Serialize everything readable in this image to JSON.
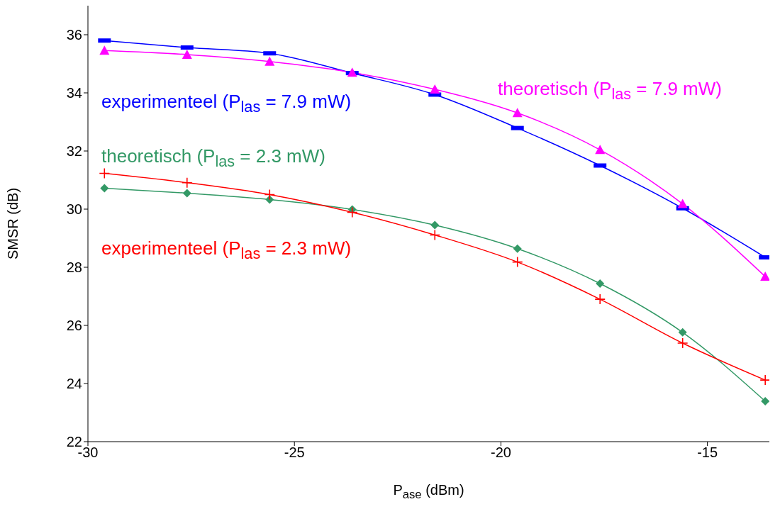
{
  "chart_data": {
    "type": "line",
    "xlabel": "P$_{ase}$ (dBm)",
    "ylabel": "SMSR (dB)",
    "x": [
      -29.6,
      -27.6,
      -25.6,
      -23.6,
      -21.6,
      -19.6,
      -17.6,
      -15.6,
      -13.6
    ],
    "series": [
      {
        "name": "experimenteel (P$_{las}$ = 7.9 mW)",
        "color": "#0000ff",
        "marker": "square",
        "values": [
          35.8,
          35.56,
          35.36,
          34.68,
          33.94,
          32.79,
          31.5,
          30.03,
          28.34
        ]
      },
      {
        "name": "theoretisch (P$_{las}$ = 7.9 mW)",
        "color": "#ff00ff",
        "marker": "triangle",
        "values": [
          35.46,
          35.32,
          35.08,
          34.7,
          34.12,
          33.31,
          32.04,
          30.18,
          27.68
        ]
      },
      {
        "name": "theoretisch (P$_{las}$ = 2.3 mW)",
        "color": "#339966",
        "marker": "diamond",
        "values": [
          30.72,
          30.55,
          30.33,
          29.99,
          29.45,
          28.64,
          27.44,
          25.76,
          23.39
        ]
      },
      {
        "name": "experimenteel (P$_{las}$ = 2.3 mW)",
        "color": "#ff0000",
        "marker": "cross",
        "values": [
          31.23,
          30.91,
          30.5,
          29.89,
          29.11,
          28.18,
          26.9,
          25.39,
          24.12
        ]
      }
    ],
    "xlim": [
      -30,
      -13.5
    ],
    "xticks": [
      -30,
      -25,
      -20,
      -15
    ],
    "ylim": [
      22,
      37
    ],
    "yticks": [
      22,
      24,
      26,
      28,
      30,
      32,
      34,
      36
    ],
    "grid": false,
    "legend": false,
    "line_style": "solid"
  }
}
